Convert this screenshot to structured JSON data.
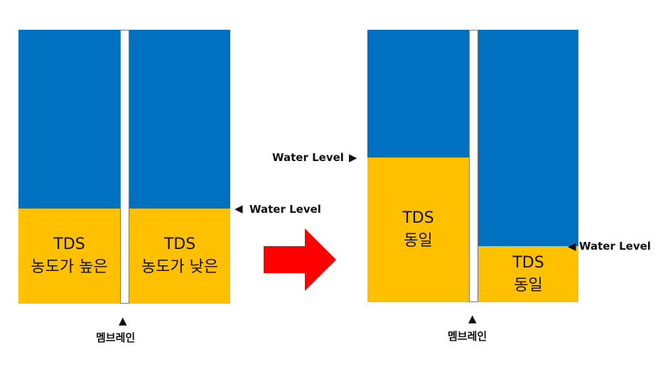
{
  "colors": {
    "water": "#0070C0",
    "solute_layer": "#FFC000",
    "arrow": "#FF0000",
    "membrane": "#FFFFFF"
  },
  "left_diagram": {
    "left_chamber": {
      "line1": "TDS",
      "line2": "농도가 높은"
    },
    "right_chamber": {
      "line1": "TDS",
      "line2": "농도가 낮은"
    },
    "water_level_label": "Water Level",
    "water_level_icon": "left-triangle-icon",
    "membrane_label": "멤브레인",
    "membrane_marker_icon": "up-triangle-icon"
  },
  "transition_arrow_icon": "right-arrow-icon",
  "right_diagram": {
    "left_chamber": {
      "line1": "TDS",
      "line2": "동일"
    },
    "right_chamber": {
      "line1": "TDS",
      "line2": "동일"
    },
    "left_water_level_label": "Water Level",
    "left_water_level_icon": "right-triangle-icon",
    "right_water_level_label": "Water Level",
    "right_water_level_icon": "left-triangle-icon",
    "membrane_label": "멤브레인",
    "membrane_marker_icon": "up-triangle-icon"
  }
}
